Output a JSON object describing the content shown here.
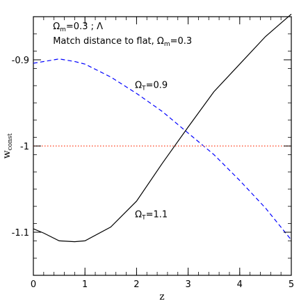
{
  "chart_data": {
    "type": "line",
    "xlabel": "z",
    "ylabel": "w",
    "ylabel_subscript": "const",
    "xlim": [
      0,
      5
    ],
    "ylim": [
      -1.15,
      -0.85
    ],
    "x_ticks": [
      0,
      1,
      2,
      3,
      4,
      5
    ],
    "x_tick_labels": [
      "0",
      "1",
      "2",
      "3",
      "4",
      "5"
    ],
    "y_ticks": [
      -0.9,
      -1.0,
      -1.1
    ],
    "y_tick_labels": [
      "-0.9",
      "-1",
      "-1.1"
    ],
    "grid": false,
    "annotations": [
      {
        "id": "omega-lambda",
        "text": "Ω",
        "sub": "m",
        "rest": "=0.3 ; Λ",
        "x": 0.38,
        "y": -0.8645,
        "color": "#000000"
      },
      {
        "id": "match-distance",
        "text": "Match distance to flat, Ω",
        "sub": "m",
        "rest": "=0.3",
        "x": 0.38,
        "y": -0.8815,
        "color": "#000000"
      },
      {
        "id": "omega-t-09",
        "text": "Ω",
        "sub": "T",
        "rest": "=0.9",
        "x": 1.97,
        "y": -0.9325,
        "color": "#0000ff"
      },
      {
        "id": "omega-t-11",
        "text": "Ω",
        "sub": "T",
        "rest": "=1.1",
        "x": 1.97,
        "y": -1.0825,
        "color": "#000000"
      }
    ],
    "series": [
      {
        "id": "omega-t-1.1",
        "color": "#000000",
        "dash": "solid",
        "x": [
          0,
          0.2,
          0.5,
          0.8,
          1.0,
          1.5,
          2.0,
          2.5,
          3.0,
          3.5,
          4.0,
          4.5,
          5.0
        ],
        "y": [
          -1.096,
          -1.101,
          -1.11,
          -1.111,
          -1.11,
          -1.094,
          -1.064,
          -1.02,
          -0.978,
          -0.937,
          -0.905,
          -0.873,
          -0.847
        ]
      },
      {
        "id": "omega-t-0.9",
        "color": "#0000ff",
        "dash": "dashed",
        "x": [
          0,
          0.2,
          0.5,
          0.8,
          1.0,
          1.5,
          2.0,
          2.5,
          3.0,
          3.5,
          4.0,
          4.5,
          5.0
        ],
        "y": [
          -0.904,
          -0.902,
          -0.899,
          -0.902,
          -0.905,
          -0.92,
          -0.939,
          -0.96,
          -0.985,
          -1.01,
          -1.04,
          -1.072,
          -1.109
        ]
      },
      {
        "id": "flat-lambda",
        "color": "#ff5a3c",
        "dash": "dotted",
        "x": [
          0,
          5
        ],
        "y": [
          -1.0,
          -1.0
        ]
      }
    ]
  }
}
